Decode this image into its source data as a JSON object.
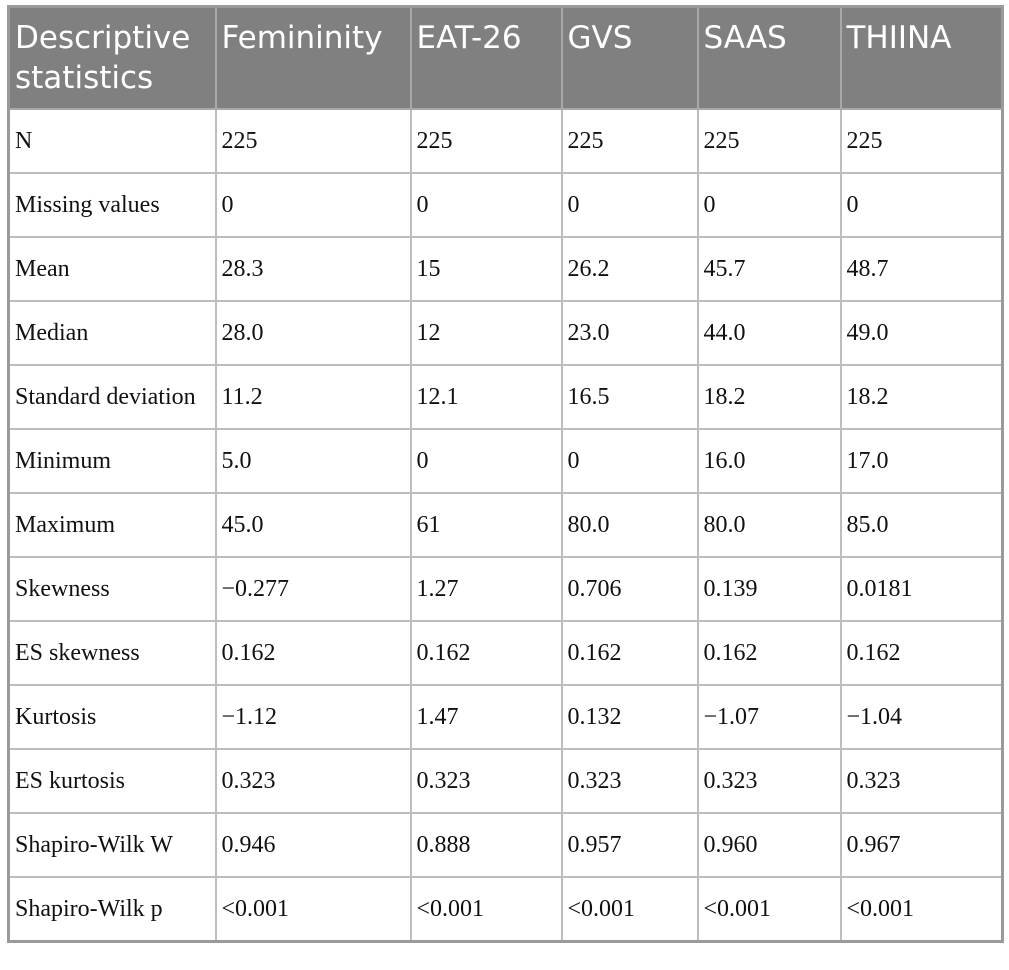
{
  "table": {
    "header": [
      "Descriptive statistics",
      "Femininity",
      "EAT-26",
      "GVS",
      "SAAS",
      "THIINA"
    ],
    "rows": [
      [
        "N",
        "225",
        "225",
        "225",
        "225",
        "225"
      ],
      [
        "Missing values",
        "0",
        "0",
        "0",
        "0",
        "0"
      ],
      [
        "Mean",
        "28.3",
        "15",
        "26.2",
        "45.7",
        "48.7"
      ],
      [
        "Median",
        "28.0",
        "12",
        "23.0",
        "44.0",
        "49.0"
      ],
      [
        "Standard deviation",
        "11.2",
        "12.1",
        "16.5",
        "18.2",
        "18.2"
      ],
      [
        "Minimum",
        "5.0",
        "0",
        "0",
        "16.0",
        "17.0"
      ],
      [
        "Maximum",
        "45.0",
        "61",
        "80.0",
        "80.0",
        "85.0"
      ],
      [
        "Skewness",
        "−0.277",
        "1.27",
        "0.706",
        "0.139",
        "0.0181"
      ],
      [
        "ES skewness",
        "0.162",
        "0.162",
        "0.162",
        "0.162",
        "0.162"
      ],
      [
        "Kurtosis",
        "−1.12",
        "1.47",
        "0.132",
        "−1.07",
        "−1.04"
      ],
      [
        "ES kurtosis",
        "0.323",
        "0.323",
        "0.323",
        "0.323",
        "0.323"
      ],
      [
        "Shapiro-Wilk W",
        "0.946",
        "0.888",
        "0.957",
        "0.960",
        "0.967"
      ],
      [
        "Shapiro-Wilk p",
        "<0.001",
        "<0.001",
        "<0.001",
        "<0.001",
        "<0.001"
      ]
    ]
  }
}
